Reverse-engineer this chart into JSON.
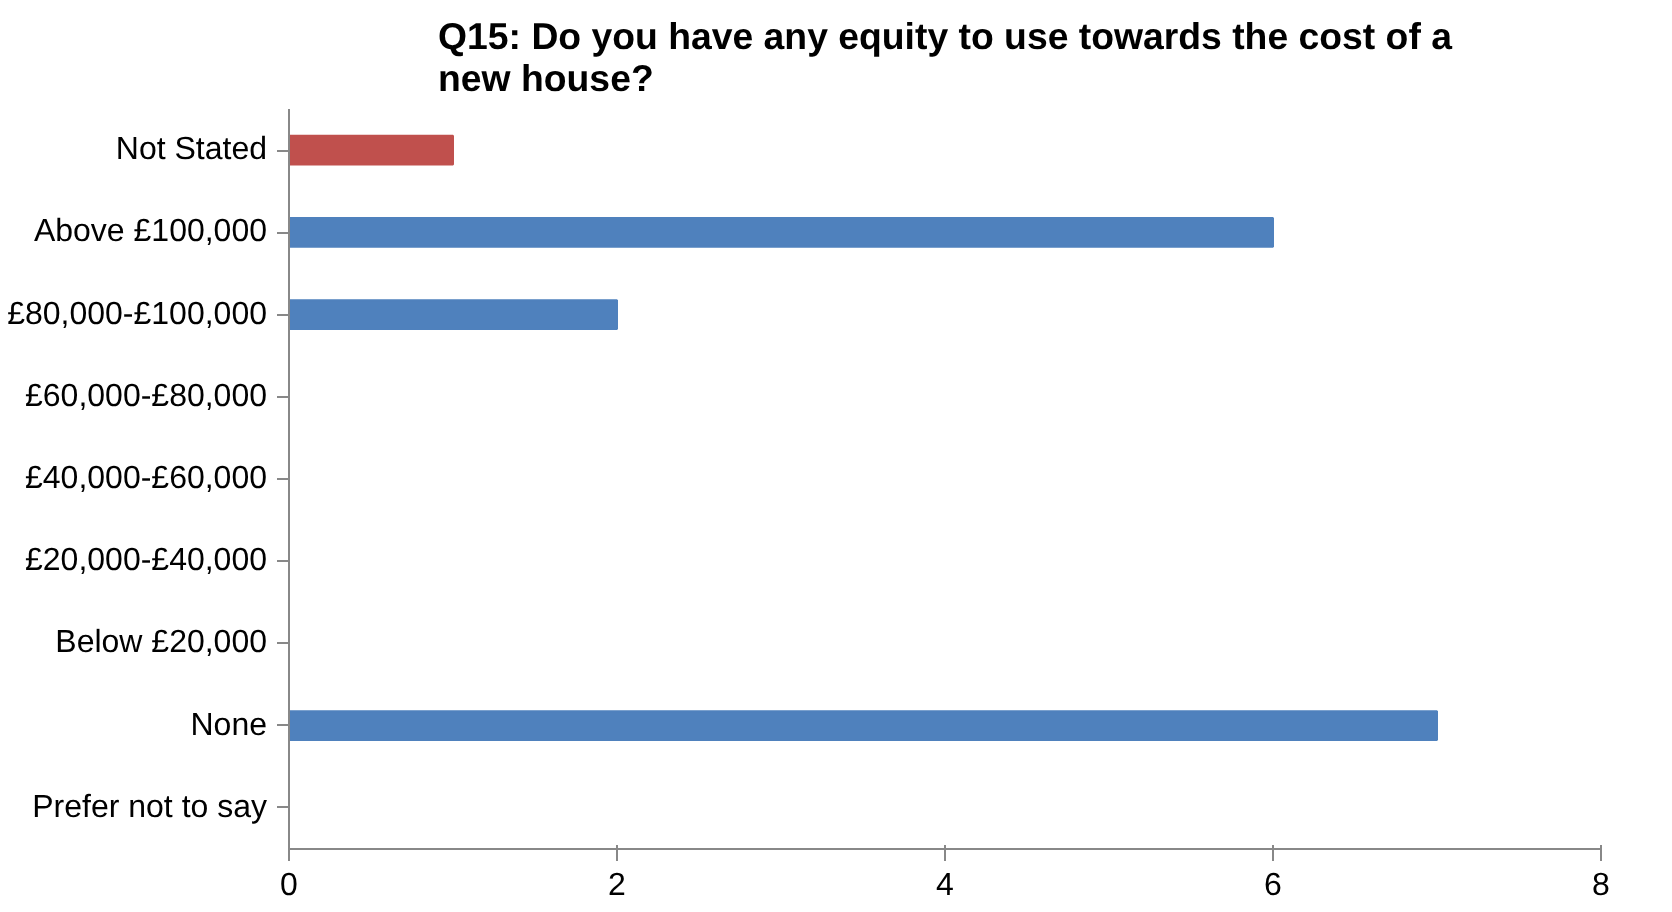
{
  "chart_data": {
    "type": "bar",
    "orientation": "horizontal",
    "title": "Q15: Do you have any equity to use towards the cost of a new house?",
    "categories": [
      "Not Stated",
      "Above £100,000",
      "£80,000-£100,000",
      "£60,000-£80,000",
      "£40,000-£60,000",
      "£20,000-£40,000",
      "Below £20,000",
      "None",
      "Prefer not to say"
    ],
    "values": [
      1,
      6,
      2,
      0,
      0,
      0,
      0,
      7,
      0
    ],
    "colors": [
      "#c0504d",
      "#4f81bd",
      "#4f81bd",
      "#4f81bd",
      "#4f81bd",
      "#4f81bd",
      "#4f81bd",
      "#4f81bd",
      "#4f81bd"
    ],
    "xlim": [
      0,
      8
    ],
    "xticks": [
      0,
      2,
      4,
      6,
      8
    ],
    "grid": false
  }
}
